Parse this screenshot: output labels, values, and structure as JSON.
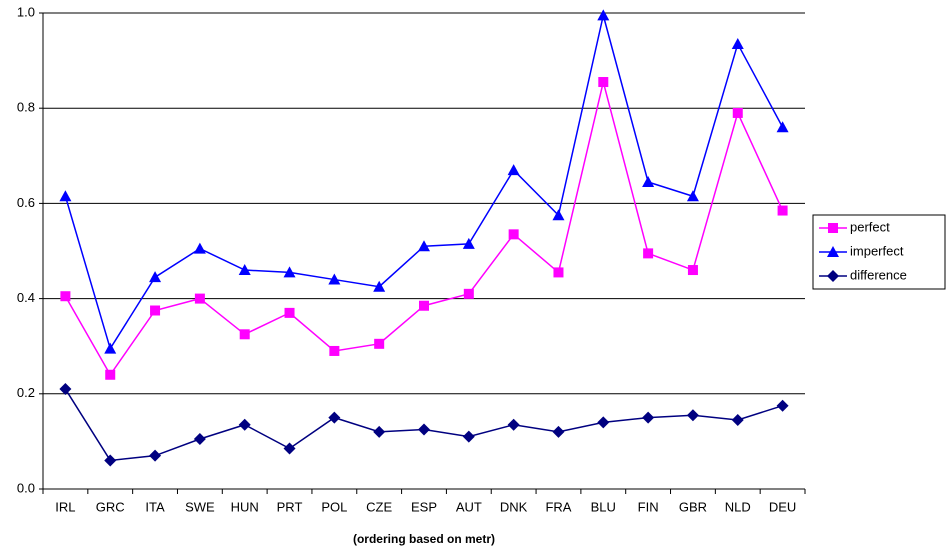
{
  "chart_data": {
    "type": "line",
    "x_label": "(ordering based on metr)",
    "categories": [
      "IRL",
      "GRC",
      "ITA",
      "SWE",
      "HUN",
      "PRT",
      "POL",
      "CZE",
      "ESP",
      "AUT",
      "DNK",
      "FRA",
      "BLU",
      "FIN",
      "GBR",
      "NLD",
      "DEU"
    ],
    "series": [
      {
        "name": "perfect",
        "color": "#ff00ff",
        "marker": "square",
        "values": [
          0.405,
          0.24,
          0.375,
          0.4,
          0.325,
          0.37,
          0.29,
          0.305,
          0.385,
          0.41,
          0.535,
          0.455,
          0.855,
          0.495,
          0.46,
          0.79,
          0.585
        ]
      },
      {
        "name": "imperfect",
        "color": "#0000ff",
        "marker": "triangle",
        "values": [
          0.615,
          0.295,
          0.445,
          0.505,
          0.46,
          0.455,
          0.44,
          0.425,
          0.51,
          0.515,
          0.67,
          0.575,
          0.995,
          0.645,
          0.615,
          0.935,
          0.76
        ]
      },
      {
        "name": "difference",
        "color": "#000080",
        "marker": "diamond",
        "values": [
          0.21,
          0.06,
          0.07,
          0.105,
          0.135,
          0.085,
          0.15,
          0.12,
          0.125,
          0.11,
          0.135,
          0.12,
          0.14,
          0.15,
          0.155,
          0.145,
          0.175
        ]
      }
    ],
    "ylim": [
      0,
      1
    ],
    "yticks": [
      {
        "value": 0,
        "label": "0.0"
      },
      0.2,
      0.4,
      0.6,
      0.8,
      {
        "value": 1,
        "label": "1.0"
      }
    ],
    "grid": true,
    "legend": "right"
  }
}
